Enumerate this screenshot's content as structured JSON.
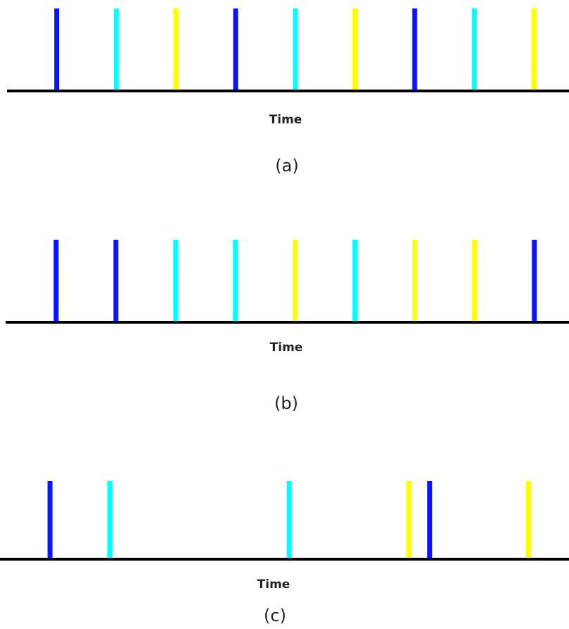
{
  "figure": {
    "colors": {
      "blue": "#0a14ff",
      "cyan": "#00ffff",
      "yellow": "#ffff00",
      "axis": "#000000"
    },
    "panels": [
      {
        "id": "a",
        "caption": "(a)",
        "axis_label": "Time",
        "events": [
          {
            "t": 1,
            "color": "blue"
          },
          {
            "t": 2,
            "color": "cyan"
          },
          {
            "t": 3,
            "color": "yellow"
          },
          {
            "t": 4,
            "color": "blue"
          },
          {
            "t": 5,
            "color": "cyan"
          },
          {
            "t": 6,
            "color": "yellow"
          },
          {
            "t": 7,
            "color": "blue"
          },
          {
            "t": 8,
            "color": "cyan"
          },
          {
            "t": 9,
            "color": "yellow"
          }
        ]
      },
      {
        "id": "b",
        "caption": "(b)",
        "axis_label": "Time",
        "events": [
          {
            "t": 1,
            "color": "blue"
          },
          {
            "t": 2,
            "color": "blue"
          },
          {
            "t": 3,
            "color": "cyan"
          },
          {
            "t": 4,
            "color": "cyan"
          },
          {
            "t": 5,
            "color": "yellow"
          },
          {
            "t": 6,
            "color": "cyan"
          },
          {
            "t": 7,
            "color": "yellow"
          },
          {
            "t": 8,
            "color": "yellow"
          },
          {
            "t": 9,
            "color": "blue"
          }
        ]
      },
      {
        "id": "c",
        "caption": "(c)",
        "axis_label": "Time",
        "events": [
          {
            "t": 0.9,
            "color": "blue"
          },
          {
            "t": 1.9,
            "color": "cyan"
          },
          {
            "t": 4.9,
            "color": "cyan"
          },
          {
            "t": 6.9,
            "color": "yellow"
          },
          {
            "t": 7.25,
            "color": "blue"
          },
          {
            "t": 8.9,
            "color": "yellow"
          }
        ]
      }
    ]
  }
}
